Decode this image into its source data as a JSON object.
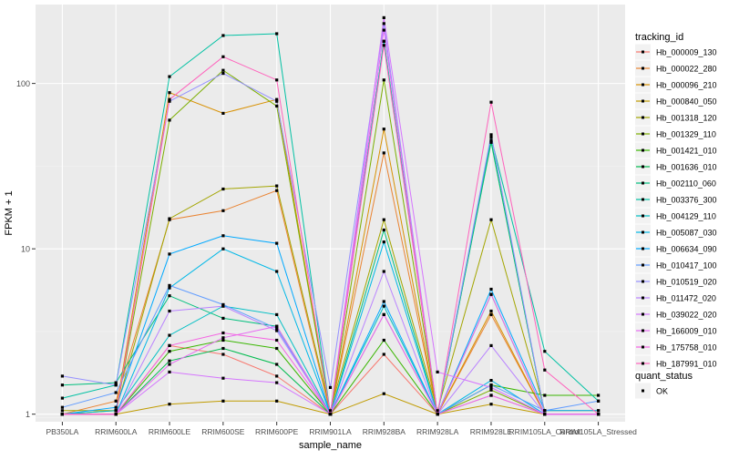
{
  "chart_data": {
    "type": "line",
    "title": "",
    "xlabel": "sample_name",
    "ylabel": "FPKM + 1",
    "y_scale": "log10",
    "ylim": [
      0.9,
      300
    ],
    "y_ticks": [
      1,
      10,
      100
    ],
    "y_tick_labels": [
      "1",
      "10",
      "100"
    ],
    "grid": true,
    "panel_background": "#ebebeb",
    "categories": [
      "PB350LA",
      "RRIM600LA",
      "RRIM600LE",
      "RRIM600SE",
      "RRIM600PE",
      "RRIM901LA",
      "RRIM928BA",
      "RRIM928LA",
      "RRIM928LE",
      "RRIM105LA_Control",
      "RRIM105LA_Stressed"
    ],
    "legend": {
      "position": "right",
      "color_title": "tracking_id",
      "shape_title": "quant_status",
      "shape_entries": [
        "OK"
      ]
    },
    "series": [
      {
        "name": "Hb_000009_130",
        "color": "#F8766D",
        "values": [
          1.0,
          1.0,
          2.6,
          2.3,
          1.7,
          1.0,
          2.3,
          1.0,
          1.3,
          1.0,
          1.0
        ]
      },
      {
        "name": "Hb_000022_280",
        "color": "#EA8331",
        "values": [
          1.0,
          1.2,
          15.0,
          17.0,
          22.5,
          1.0,
          38.0,
          1.0,
          4.0,
          1.0,
          1.0
        ]
      },
      {
        "name": "Hb_000096_210",
        "color": "#D89000",
        "values": [
          1.0,
          1.05,
          88.0,
          66.0,
          80.0,
          1.0,
          53.0,
          1.0,
          4.2,
          1.0,
          1.0
        ]
      },
      {
        "name": "Hb_000840_050",
        "color": "#C09B00",
        "values": [
          1.0,
          1.0,
          1.15,
          1.2,
          1.2,
          1.0,
          1.33,
          1.0,
          1.15,
          1.0,
          1.0
        ]
      },
      {
        "name": "Hb_001318_120",
        "color": "#A3A500",
        "values": [
          1.05,
          1.05,
          15.2,
          23.0,
          24.0,
          1.05,
          15.0,
          1.05,
          15.0,
          1.05,
          1.05
        ]
      },
      {
        "name": "Hb_001329_110",
        "color": "#7CAE00",
        "values": [
          1.0,
          1.0,
          60.0,
          120.0,
          73.0,
          1.0,
          105.0,
          1.0,
          1.4,
          1.0,
          1.0
        ]
      },
      {
        "name": "Hb_001421_010",
        "color": "#39B600",
        "values": [
          1.0,
          1.0,
          2.4,
          2.8,
          2.5,
          1.0,
          2.8,
          1.0,
          1.5,
          1.3,
          1.3
        ]
      },
      {
        "name": "Hb_001636_010",
        "color": "#00BB4E",
        "values": [
          1.0,
          1.0,
          2.1,
          2.5,
          2.0,
          1.0,
          180.0,
          1.0,
          44.0,
          1.0,
          1.0
        ]
      },
      {
        "name": "Hb_002110_060",
        "color": "#00BF7D",
        "values": [
          1.5,
          1.55,
          5.2,
          3.8,
          3.4,
          1.0,
          13.0,
          1.0,
          45.0,
          1.0,
          1.0
        ]
      },
      {
        "name": "Hb_003376_300",
        "color": "#00C1A3",
        "values": [
          1.25,
          1.5,
          110.0,
          195.0,
          200.0,
          1.0,
          180.0,
          1.0,
          47.0,
          2.4,
          1.2
        ]
      },
      {
        "name": "Hb_004129_110",
        "color": "#00BFC4",
        "values": [
          1.0,
          1.05,
          3.0,
          4.5,
          4.0,
          1.0,
          4.5,
          1.0,
          5.3,
          1.0,
          1.0
        ]
      },
      {
        "name": "Hb_005087_030",
        "color": "#00B8E7",
        "values": [
          1.0,
          1.0,
          5.8,
          10.0,
          7.3,
          1.0,
          11.0,
          1.0,
          1.6,
          1.0,
          1.0
        ]
      },
      {
        "name": "Hb_006634_090",
        "color": "#00A9FF",
        "values": [
          1.0,
          1.1,
          9.3,
          12.0,
          10.8,
          1.0,
          4.8,
          1.0,
          5.7,
          1.05,
          1.05
        ]
      },
      {
        "name": "Hb_010417_100",
        "color": "#619CFF",
        "values": [
          1.1,
          1.35,
          6.0,
          4.6,
          3.3,
          1.0,
          4.0,
          1.0,
          1.5,
          1.05,
          1.2
        ]
      },
      {
        "name": "Hb_010519_020",
        "color": "#9590FF",
        "values": [
          1.7,
          1.5,
          78.0,
          115.0,
          78.0,
          1.45,
          230.0,
          1.0,
          49.0,
          1.0,
          1.0
        ]
      },
      {
        "name": "Hb_011472_020",
        "color": "#B983FF",
        "values": [
          1.0,
          1.0,
          4.2,
          4.5,
          3.2,
          1.0,
          7.3,
          1.0,
          2.6,
          1.0,
          1.0
        ]
      },
      {
        "name": "Hb_039022_020",
        "color": "#D575FE",
        "values": [
          1.0,
          1.0,
          1.8,
          1.65,
          1.55,
          1.0,
          250.0,
          1.8,
          1.45,
          1.0,
          1.0
        ]
      },
      {
        "name": "Hb_166009_010",
        "color": "#E76BF3",
        "values": [
          1.0,
          1.0,
          2.0,
          2.9,
          3.4,
          1.0,
          210.0,
          1.0,
          1.3,
          1.0,
          1.0
        ]
      },
      {
        "name": "Hb_175758_010",
        "color": "#F564E3",
        "values": [
          1.0,
          1.0,
          2.6,
          3.1,
          2.8,
          1.0,
          4.0,
          1.0,
          5.3,
          1.0,
          1.0
        ]
      },
      {
        "name": "Hb_187991_010",
        "color": "#FF62BC",
        "values": [
          1.0,
          1.0,
          80.0,
          145.0,
          105.0,
          1.0,
          170.0,
          1.0,
          77.0,
          1.85,
          1.0
        ]
      }
    ]
  }
}
